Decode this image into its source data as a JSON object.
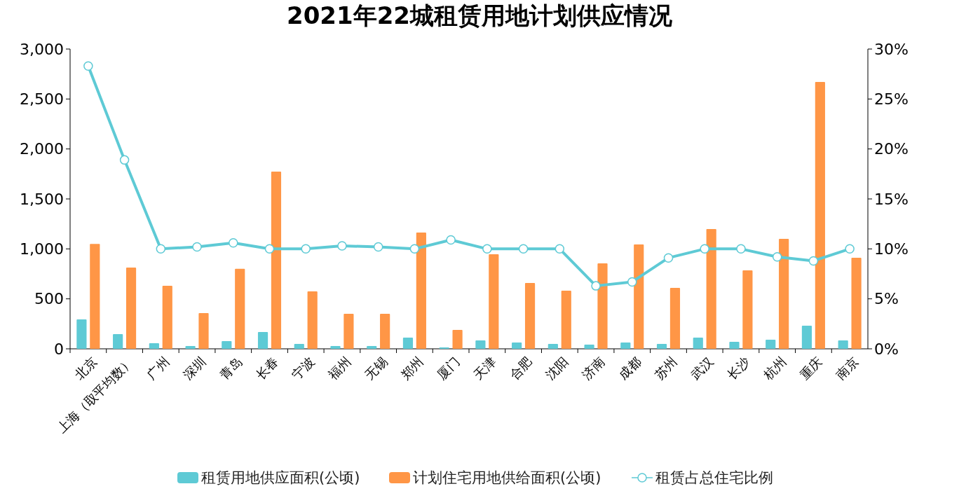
{
  "chart_data": {
    "type": "bar",
    "title": "2021年22城租赁用地计划供应情况",
    "categories": [
      "北京",
      "上海（取平均数）",
      "广州",
      "深圳",
      "青岛",
      "长春",
      "宁波",
      "福州",
      "无锡",
      "郑州",
      "厦门",
      "天津",
      "合肥",
      "沈阳",
      "济南",
      "成都",
      "苏州",
      "武汉",
      "长沙",
      "杭州",
      "重庆",
      "南京"
    ],
    "series": [
      {
        "name": "租赁用地供应面积(公顷)",
        "color": "#5ecad5",
        "values": [
          294,
          147,
          56,
          28,
          77,
          168,
          49,
          28,
          28,
          112,
          14,
          84,
          63,
          49,
          42,
          63,
          49,
          112,
          70,
          91,
          231,
          84
        ]
      },
      {
        "name": "计划住宅用地供给面积(公顷)",
        "color": "#ff9646",
        "values": [
          1050,
          813,
          630,
          357,
          800,
          1773,
          575,
          350,
          350,
          1163,
          189,
          946,
          659,
          582,
          855,
          1044,
          610,
          1198,
          785,
          1100,
          2670,
          911
        ]
      },
      {
        "name": "租赁占总住宅比例",
        "type": "line",
        "axis": "y2",
        "color": "#5ecad5",
        "marker": "circle",
        "values": [
          28.3,
          18.9,
          10.0,
          10.2,
          10.6,
          10.0,
          10.0,
          10.3,
          10.2,
          10.0,
          10.9,
          10.0,
          10.0,
          10.0,
          6.3,
          6.7,
          9.1,
          10.0,
          10.0,
          9.2,
          8.8,
          10.0
        ]
      }
    ],
    "ylim": [
      0,
      3000
    ],
    "yticks": [
      {
        "value": 0,
        "label": "0"
      },
      {
        "value": 500,
        "label": "500"
      },
      {
        "value": 1000,
        "label": "1,000"
      },
      {
        "value": 1500,
        "label": "1,500"
      },
      {
        "value": 2000,
        "label": "2,000"
      },
      {
        "value": 2500,
        "label": "2,500"
      },
      {
        "value": 3000,
        "label": "3,000"
      }
    ],
    "y2lim": [
      0,
      30
    ],
    "y2ticks": [
      {
        "value": 0,
        "label": "0%"
      },
      {
        "value": 5,
        "label": "5%"
      },
      {
        "value": 10,
        "label": "10%"
      },
      {
        "value": 15,
        "label": "15%"
      },
      {
        "value": 20,
        "label": "20%"
      },
      {
        "value": 25,
        "label": "25%"
      },
      {
        "value": 30,
        "label": "30%"
      }
    ],
    "legend": "bottom",
    "grid": false
  }
}
